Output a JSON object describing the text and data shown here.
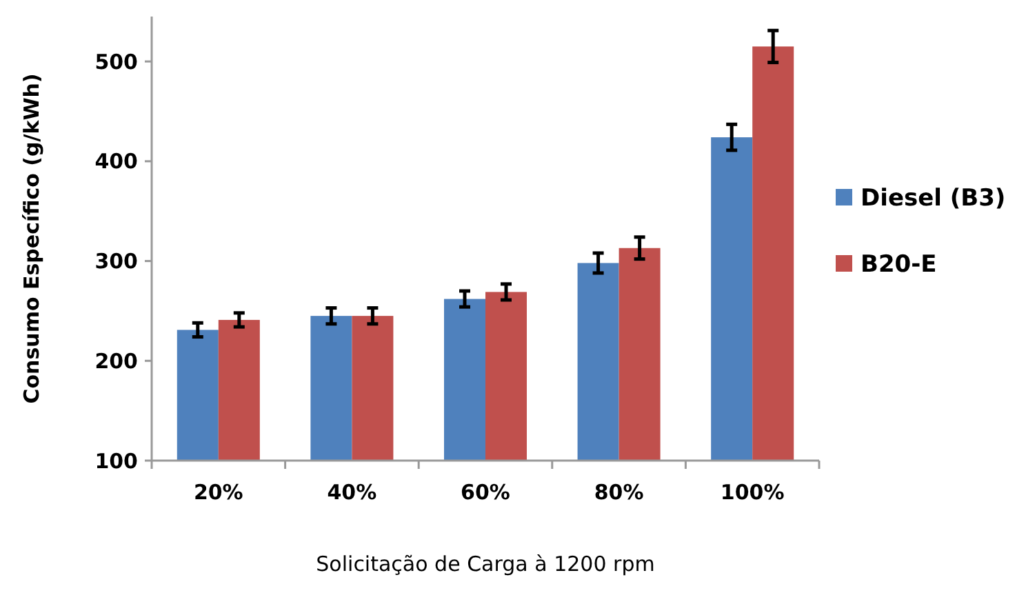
{
  "chart_data": {
    "type": "bar",
    "xlabel": "Solicitação de Carga à 1200 rpm",
    "ylabel": "Consumo Específico (g/kWh)",
    "categories": [
      "20%",
      "40%",
      "60%",
      "80%",
      "100%"
    ],
    "series": [
      {
        "name": "Diesel (B3)",
        "color": "#4f81bd",
        "values": [
          231,
          245,
          262,
          298,
          424
        ],
        "errors": [
          7,
          8,
          8,
          10,
          13
        ]
      },
      {
        "name": "B20-E",
        "color": "#c0504d",
        "values": [
          241,
          245,
          269,
          313,
          515
        ],
        "errors": [
          7,
          8,
          8,
          11,
          16
        ]
      }
    ],
    "ylim": [
      100,
      545
    ],
    "yticks": [
      100,
      200,
      300,
      400,
      500
    ],
    "grid": false,
    "legend": "right"
  }
}
